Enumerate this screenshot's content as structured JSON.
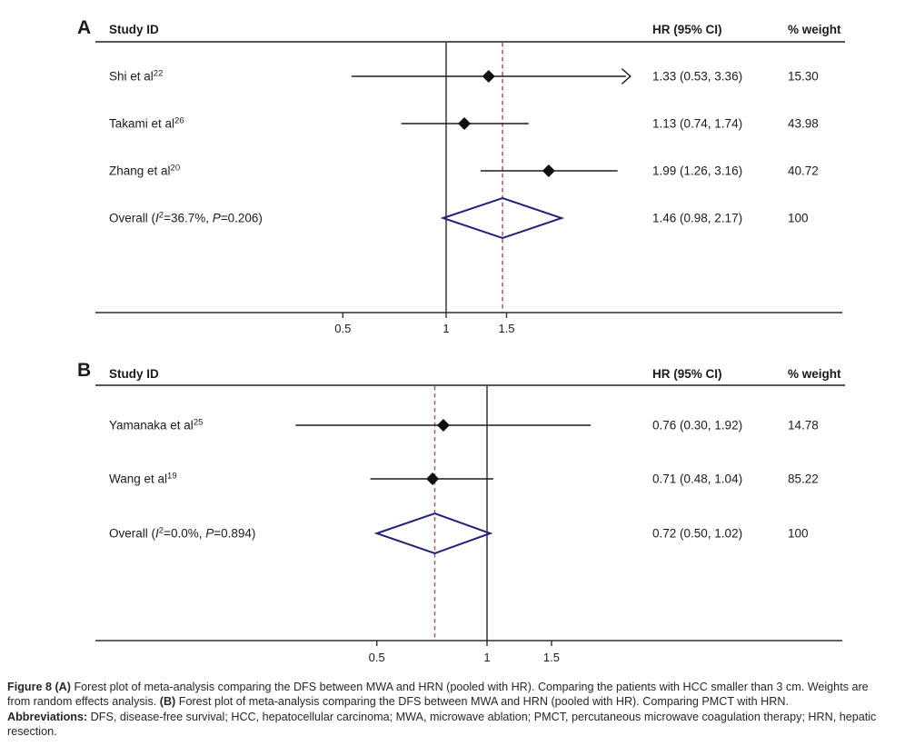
{
  "figure_caption": {
    "lines": [
      [
        {
          "text": "Figure 8 (A)",
          "bold": true
        },
        {
          "text": " Forest plot of meta-analysis comparing the DFS between MWA and HRN (pooled with HR). Comparing the patients with HCC smaller than 3 cm. Weights are",
          "bold": false
        }
      ],
      [
        {
          "text": "from random effects analysis. ",
          "bold": false
        },
        {
          "text": "(B)",
          "bold": true
        },
        {
          "text": " Forest plot of meta-analysis comparing the DFS between MWA and HRN (pooled with HR). Comparing PMCT with HRN.",
          "bold": false
        }
      ],
      [
        {
          "text": "Abbreviations:",
          "bold": true
        },
        {
          "text": " DFS, disease-free survival; HCC, hepatocellular carcinoma; MWA, microwave ablation; PMCT, percutaneous microwave coagulation therapy; HRN, hepatic",
          "bold": false
        }
      ],
      [
        {
          "text": "resection.",
          "bold": false
        }
      ]
    ]
  },
  "colors": {
    "ci_line": "#1b1b1b",
    "marker": "#111111",
    "reference_line": "#4d4d4d",
    "pooled_dashed_line": "#a4595a",
    "overall_diamond": "#22227d",
    "axis": "#2f2f2f",
    "text": "#1b1b1b"
  },
  "chart_data": [
    {
      "type": "forest",
      "panel_label": "A",
      "columns": {
        "study": "Study ID",
        "hr": "HR (95% CI)",
        "weight": "% weight"
      },
      "x_axis": {
        "scale": "log",
        "tick_values": [
          0.5,
          1,
          1.5
        ],
        "tick_labels": [
          "0.5",
          "1",
          "1.5"
        ],
        "reference_value": 1,
        "pooled_value": 1.46,
        "xlim_approx": [
          0.3,
          3.4
        ]
      },
      "studies": [
        {
          "name": "Shi et al",
          "ref_sup": "22",
          "hr": 1.33,
          "ci_low": 0.53,
          "ci_high": 3.36,
          "hr_text": "1.33 (0.53, 3.36)",
          "weight": "15.30",
          "arrow_high": true
        },
        {
          "name": "Takami et al",
          "ref_sup": "26",
          "hr": 1.13,
          "ci_low": 0.74,
          "ci_high": 1.74,
          "hr_text": "1.13 (0.74, 1.74)",
          "weight": "43.98",
          "arrow_high": false
        },
        {
          "name": "Zhang et al",
          "ref_sup": "20",
          "hr": 1.99,
          "ci_low": 1.26,
          "ci_high": 3.16,
          "hr_text": "1.99 (1.26, 3.16)",
          "weight": "40.72",
          "arrow_high": false
        }
      ],
      "overall": {
        "label_prefix": "Overall (",
        "i2_symbol": "I",
        "i2_sup": "2",
        "i2_rest": "=36.7%, ",
        "p_symbol": "P",
        "p_rest": "=0.206)",
        "hr": 1.46,
        "ci_low": 0.98,
        "ci_high": 2.17,
        "hr_text": "1.46 (0.98, 2.17)",
        "weight": "100"
      }
    },
    {
      "type": "forest",
      "panel_label": "B",
      "columns": {
        "study": "Study ID",
        "hr": "HR (95% CI)",
        "weight": "% weight"
      },
      "x_axis": {
        "scale": "log",
        "tick_values": [
          0.5,
          1,
          1.5
        ],
        "tick_labels": [
          "0.5",
          "1",
          "1.5"
        ],
        "reference_value": 1,
        "pooled_value": 0.72,
        "xlim_approx": [
          0.28,
          2.0
        ]
      },
      "studies": [
        {
          "name": "Yamanaka et al",
          "ref_sup": "25",
          "hr": 0.76,
          "ci_low": 0.3,
          "ci_high": 1.92,
          "hr_text": "0.76 (0.30, 1.92)",
          "weight": "14.78",
          "arrow_high": false
        },
        {
          "name": "Wang et al",
          "ref_sup": "19",
          "hr": 0.71,
          "ci_low": 0.48,
          "ci_high": 1.04,
          "hr_text": "0.71 (0.48, 1.04)",
          "weight": "85.22",
          "arrow_high": false
        }
      ],
      "overall": {
        "label_prefix": "Overall (",
        "i2_symbol": "I",
        "i2_sup": "2",
        "i2_rest": "=0.0%, ",
        "p_symbol": "P",
        "p_rest": "=0.894)",
        "hr": 0.72,
        "ci_low": 0.5,
        "ci_high": 1.02,
        "hr_text": "0.72 (0.50, 1.02)",
        "weight": "100"
      }
    }
  ]
}
